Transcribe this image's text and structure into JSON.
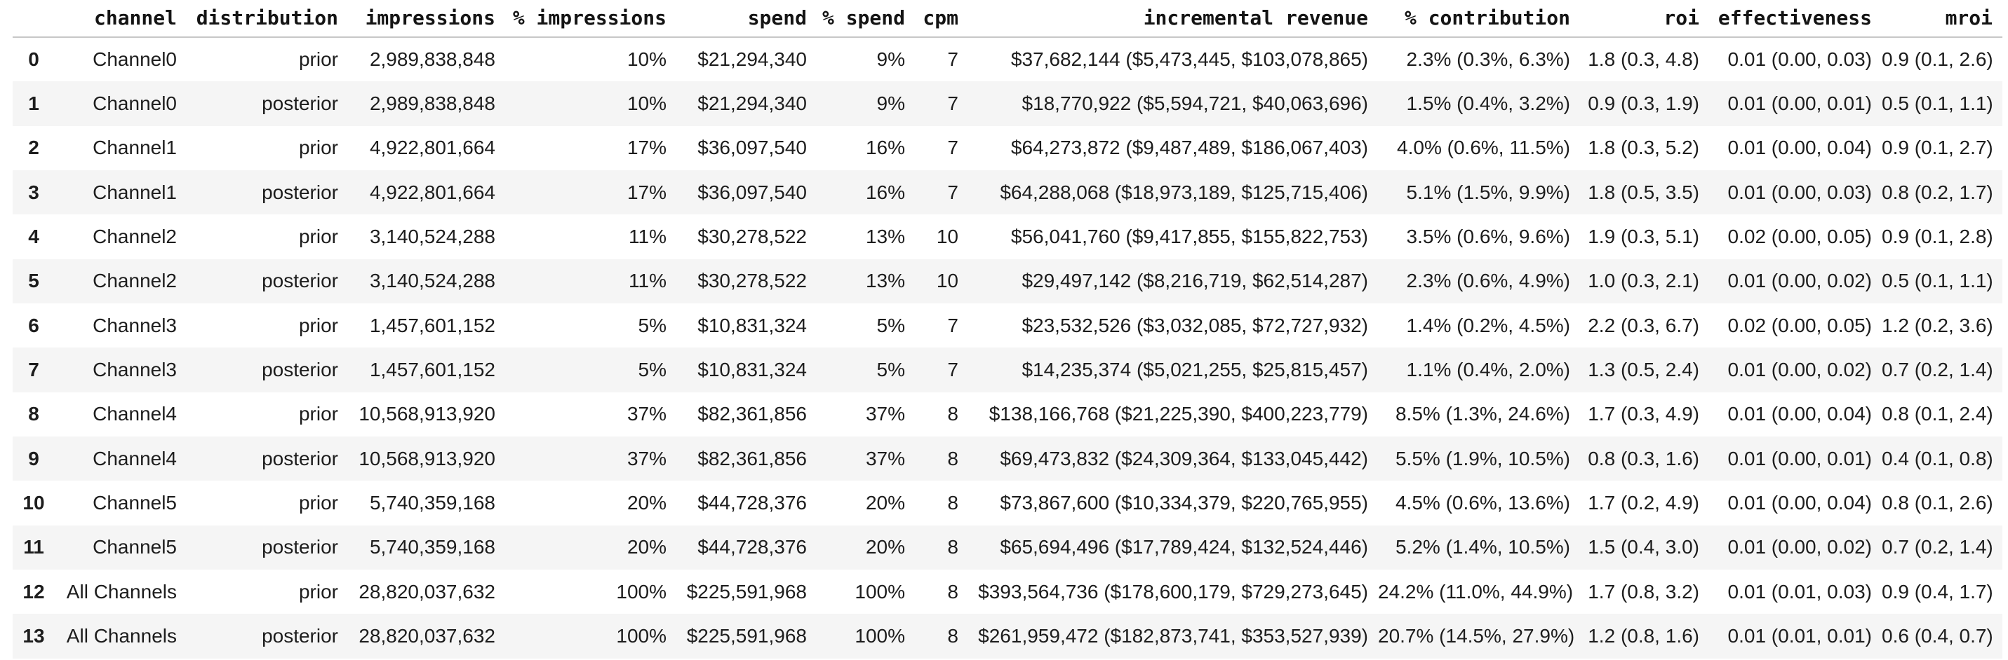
{
  "colors": {
    "row_stripe": "#f5f5f5",
    "header_border": "#c7c7c7",
    "text": "#1d1d1d",
    "background": "#ffffff"
  },
  "table": {
    "columns": [
      "",
      "channel",
      "distribution",
      "impressions",
      "% impressions",
      "spend",
      "% spend",
      "cpm",
      "incremental revenue",
      "% contribution",
      "roi",
      "effectiveness",
      "mroi"
    ],
    "rows": [
      {
        "index": "0",
        "channel": "Channel0",
        "distribution": "prior",
        "impressions": "2,989,838,848",
        "pct_impressions": "10%",
        "spend": "$21,294,340",
        "pct_spend": "9%",
        "cpm": "7",
        "incremental_revenue": "$37,682,144 ($5,473,445, $103,078,865)",
        "pct_contribution": "2.3% (0.3%, 6.3%)",
        "roi": "1.8 (0.3, 4.8)",
        "effectiveness": "0.01 (0.00, 0.03)",
        "mroi": "0.9 (0.1, 2.6)"
      },
      {
        "index": "1",
        "channel": "Channel0",
        "distribution": "posterior",
        "impressions": "2,989,838,848",
        "pct_impressions": "10%",
        "spend": "$21,294,340",
        "pct_spend": "9%",
        "cpm": "7",
        "incremental_revenue": "$18,770,922 ($5,594,721, $40,063,696)",
        "pct_contribution": "1.5% (0.4%, 3.2%)",
        "roi": "0.9 (0.3, 1.9)",
        "effectiveness": "0.01 (0.00, 0.01)",
        "mroi": "0.5 (0.1, 1.1)"
      },
      {
        "index": "2",
        "channel": "Channel1",
        "distribution": "prior",
        "impressions": "4,922,801,664",
        "pct_impressions": "17%",
        "spend": "$36,097,540",
        "pct_spend": "16%",
        "cpm": "7",
        "incremental_revenue": "$64,273,872 ($9,487,489, $186,067,403)",
        "pct_contribution": "4.0% (0.6%, 11.5%)",
        "roi": "1.8 (0.3, 5.2)",
        "effectiveness": "0.01 (0.00, 0.04)",
        "mroi": "0.9 (0.1, 2.7)"
      },
      {
        "index": "3",
        "channel": "Channel1",
        "distribution": "posterior",
        "impressions": "4,922,801,664",
        "pct_impressions": "17%",
        "spend": "$36,097,540",
        "pct_spend": "16%",
        "cpm": "7",
        "incremental_revenue": "$64,288,068 ($18,973,189, $125,715,406)",
        "pct_contribution": "5.1% (1.5%, 9.9%)",
        "roi": "1.8 (0.5, 3.5)",
        "effectiveness": "0.01 (0.00, 0.03)",
        "mroi": "0.8 (0.2, 1.7)"
      },
      {
        "index": "4",
        "channel": "Channel2",
        "distribution": "prior",
        "impressions": "3,140,524,288",
        "pct_impressions": "11%",
        "spend": "$30,278,522",
        "pct_spend": "13%",
        "cpm": "10",
        "incremental_revenue": "$56,041,760 ($9,417,855, $155,822,753)",
        "pct_contribution": "3.5% (0.6%, 9.6%)",
        "roi": "1.9 (0.3, 5.1)",
        "effectiveness": "0.02 (0.00, 0.05)",
        "mroi": "0.9 (0.1, 2.8)"
      },
      {
        "index": "5",
        "channel": "Channel2",
        "distribution": "posterior",
        "impressions": "3,140,524,288",
        "pct_impressions": "11%",
        "spend": "$30,278,522",
        "pct_spend": "13%",
        "cpm": "10",
        "incremental_revenue": "$29,497,142 ($8,216,719, $62,514,287)",
        "pct_contribution": "2.3% (0.6%, 4.9%)",
        "roi": "1.0 (0.3, 2.1)",
        "effectiveness": "0.01 (0.00, 0.02)",
        "mroi": "0.5 (0.1, 1.1)"
      },
      {
        "index": "6",
        "channel": "Channel3",
        "distribution": "prior",
        "impressions": "1,457,601,152",
        "pct_impressions": "5%",
        "spend": "$10,831,324",
        "pct_spend": "5%",
        "cpm": "7",
        "incremental_revenue": "$23,532,526 ($3,032,085, $72,727,932)",
        "pct_contribution": "1.4% (0.2%, 4.5%)",
        "roi": "2.2 (0.3, 6.7)",
        "effectiveness": "0.02 (0.00, 0.05)",
        "mroi": "1.2 (0.2, 3.6)"
      },
      {
        "index": "7",
        "channel": "Channel3",
        "distribution": "posterior",
        "impressions": "1,457,601,152",
        "pct_impressions": "5%",
        "spend": "$10,831,324",
        "pct_spend": "5%",
        "cpm": "7",
        "incremental_revenue": "$14,235,374 ($5,021,255, $25,815,457)",
        "pct_contribution": "1.1% (0.4%, 2.0%)",
        "roi": "1.3 (0.5, 2.4)",
        "effectiveness": "0.01 (0.00, 0.02)",
        "mroi": "0.7 (0.2, 1.4)"
      },
      {
        "index": "8",
        "channel": "Channel4",
        "distribution": "prior",
        "impressions": "10,568,913,920",
        "pct_impressions": "37%",
        "spend": "$82,361,856",
        "pct_spend": "37%",
        "cpm": "8",
        "incremental_revenue": "$138,166,768 ($21,225,390, $400,223,779)",
        "pct_contribution": "8.5% (1.3%, 24.6%)",
        "roi": "1.7 (0.3, 4.9)",
        "effectiveness": "0.01 (0.00, 0.04)",
        "mroi": "0.8 (0.1, 2.4)"
      },
      {
        "index": "9",
        "channel": "Channel4",
        "distribution": "posterior",
        "impressions": "10,568,913,920",
        "pct_impressions": "37%",
        "spend": "$82,361,856",
        "pct_spend": "37%",
        "cpm": "8",
        "incremental_revenue": "$69,473,832 ($24,309,364, $133,045,442)",
        "pct_contribution": "5.5% (1.9%, 10.5%)",
        "roi": "0.8 (0.3, 1.6)",
        "effectiveness": "0.01 (0.00, 0.01)",
        "mroi": "0.4 (0.1, 0.8)"
      },
      {
        "index": "10",
        "channel": "Channel5",
        "distribution": "prior",
        "impressions": "5,740,359,168",
        "pct_impressions": "20%",
        "spend": "$44,728,376",
        "pct_spend": "20%",
        "cpm": "8",
        "incremental_revenue": "$73,867,600 ($10,334,379, $220,765,955)",
        "pct_contribution": "4.5% (0.6%, 13.6%)",
        "roi": "1.7 (0.2, 4.9)",
        "effectiveness": "0.01 (0.00, 0.04)",
        "mroi": "0.8 (0.1, 2.6)"
      },
      {
        "index": "11",
        "channel": "Channel5",
        "distribution": "posterior",
        "impressions": "5,740,359,168",
        "pct_impressions": "20%",
        "spend": "$44,728,376",
        "pct_spend": "20%",
        "cpm": "8",
        "incremental_revenue": "$65,694,496 ($17,789,424, $132,524,446)",
        "pct_contribution": "5.2% (1.4%, 10.5%)",
        "roi": "1.5 (0.4, 3.0)",
        "effectiveness": "0.01 (0.00, 0.02)",
        "mroi": "0.7 (0.2, 1.4)"
      },
      {
        "index": "12",
        "channel": "All Channels",
        "distribution": "prior",
        "impressions": "28,820,037,632",
        "pct_impressions": "100%",
        "spend": "$225,591,968",
        "pct_spend": "100%",
        "cpm": "8",
        "incremental_revenue": "$393,564,736 ($178,600,179, $729,273,645)",
        "pct_contribution": "24.2% (11.0%, 44.9%)",
        "roi": "1.7 (0.8, 3.2)",
        "effectiveness": "0.01 (0.01, 0.03)",
        "mroi": "0.9 (0.4, 1.7)"
      },
      {
        "index": "13",
        "channel": "All Channels",
        "distribution": "posterior",
        "impressions": "28,820,037,632",
        "pct_impressions": "100%",
        "spend": "$225,591,968",
        "pct_spend": "100%",
        "cpm": "8",
        "incremental_revenue": "$261,959,472 ($182,873,741, $353,527,939)",
        "pct_contribution": "20.7% (14.5%, 27.9%)",
        "roi": "1.2 (0.8, 1.6)",
        "effectiveness": "0.01 (0.01, 0.01)",
        "mroi": "0.6 (0.4, 0.7)"
      }
    ]
  }
}
